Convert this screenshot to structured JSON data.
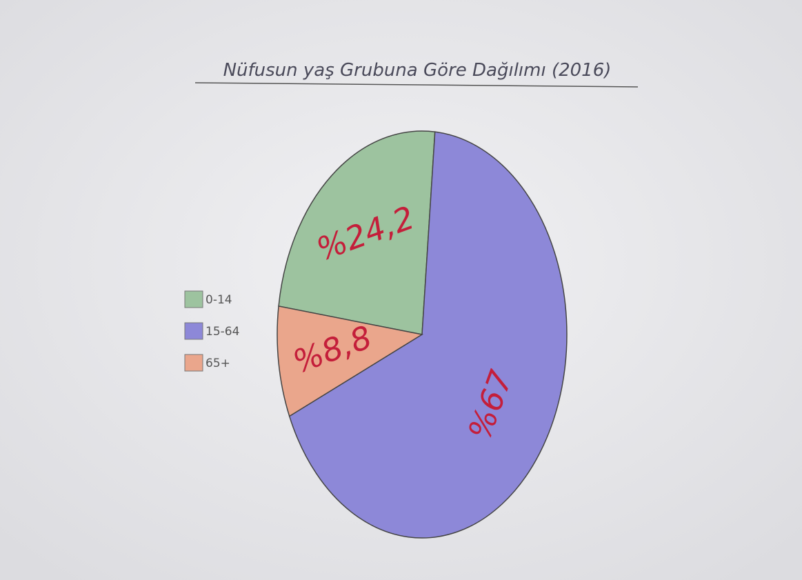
{
  "chart_data": {
    "type": "pie",
    "title": "Nüfusun yaş Grubuna Göre Dağılımı (2016)",
    "categories": [
      "0-14",
      "15-64",
      "65+"
    ],
    "values": [
      24.2,
      67,
      8.8
    ],
    "value_labels": [
      "%24,2",
      "%67",
      "%8,8"
    ],
    "colors": [
      "#9dc39f",
      "#8d88d8",
      "#eaa68c"
    ]
  }
}
